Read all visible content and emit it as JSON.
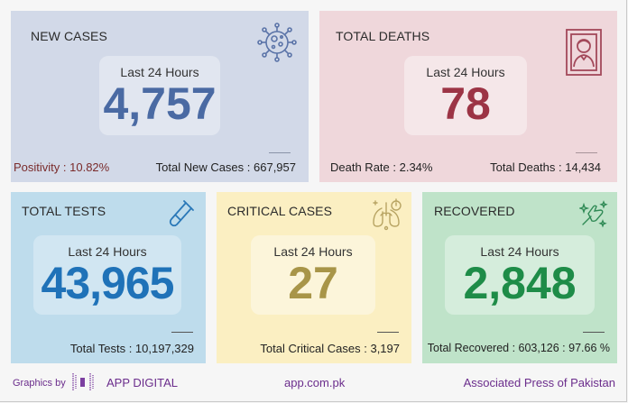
{
  "cards": {
    "new_cases": {
      "title": "NEW CASES",
      "period_label": "Last 24 Hours",
      "value": "4,757",
      "left_stat": "Positivity : 10.82%",
      "right_stat": "Total New Cases : 667,957",
      "icon": "virus-icon",
      "accent": "#4a6aa3",
      "left_color": "#7a2b2b"
    },
    "total_deaths": {
      "title": "TOTAL DEATHS",
      "period_label": "Last 24 Hours",
      "value": "78",
      "left_stat": "Death Rate : 2.34%",
      "right_stat": "Total Deaths : 14,434",
      "icon": "portrait-frame-icon",
      "accent": "#9c3445"
    },
    "total_tests": {
      "title": "TOTAL TESTS",
      "period_label": "Last 24 Hours",
      "value": "43,965",
      "right_stat": "Total Tests : 10,197,329",
      "icon": "test-tube-icon",
      "accent": "#1f72b8"
    },
    "critical_cases": {
      "title": "CRITICAL CASES",
      "period_label": "Last 24 Hours",
      "value": "27",
      "right_stat": "Total Critical Cases : 3,197",
      "icon": "lungs-icon",
      "accent": "#a89548"
    },
    "recovered": {
      "title": "RECOVERED",
      "period_label": "Last 24 Hours",
      "value": "2,848",
      "right_stat": "Total Recovered : 603,126 : 97.66 %",
      "icon": "thumbs-up-icon",
      "accent": "#1e8c48"
    }
  },
  "footer": {
    "graphics_by": "Graphics by",
    "brand": "APP DIGITAL",
    "website": "app.com.pk",
    "agency": "Associated Press of Pakistan",
    "brand_color": "#6b2d8c"
  }
}
